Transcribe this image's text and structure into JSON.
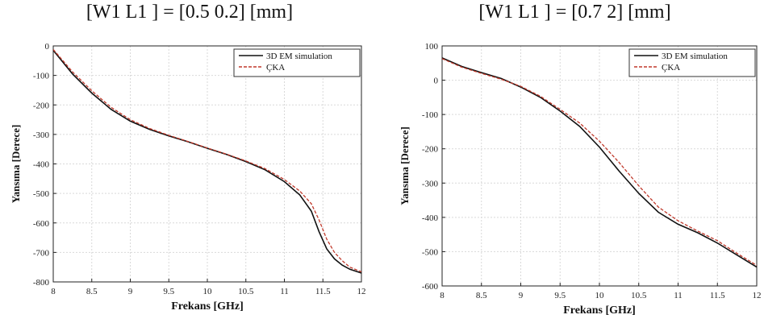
{
  "chart_data": [
    {
      "type": "line",
      "title": "[W1 L1 ] = [0.5 0.2] [mm]",
      "xlabel": "Frekans [GHz]",
      "ylabel": "Yansıma [Derece]",
      "xlim": [
        8,
        12
      ],
      "ylim": [
        -800,
        0
      ],
      "xticks": [
        8,
        8.5,
        9,
        9.5,
        10,
        10.5,
        11,
        11.5,
        12
      ],
      "xtick_labels": [
        "8",
        "8.5",
        "9",
        "9.5",
        "10",
        "10.5",
        "11",
        "11.5",
        "12"
      ],
      "yticks": [
        0,
        -100,
        -200,
        -300,
        -400,
        -500,
        -600,
        -700,
        -800
      ],
      "ytick_labels": [
        "0",
        "-100",
        "-200",
        "-300",
        "-400",
        "-500",
        "-600",
        "-700",
        "-800"
      ],
      "grid": true,
      "legend_position": "top-right",
      "series": [
        {
          "name": "3D EM simulation",
          "color": "#111111",
          "style": "solid",
          "x": [
            8,
            8.25,
            8.5,
            8.75,
            9,
            9.25,
            9.5,
            9.75,
            10,
            10.25,
            10.5,
            10.75,
            11,
            11.2,
            11.35,
            11.45,
            11.55,
            11.65,
            11.75,
            11.85,
            12
          ],
          "y": [
            -15,
            -95,
            -160,
            -215,
            -255,
            -283,
            -305,
            -325,
            -347,
            -368,
            -392,
            -420,
            -460,
            -505,
            -560,
            -630,
            -688,
            -722,
            -743,
            -757,
            -770
          ]
        },
        {
          "name": "ÇKA",
          "color": "#c0392b",
          "style": "dashed",
          "x": [
            8,
            8.25,
            8.5,
            8.75,
            9,
            9.25,
            9.5,
            9.75,
            10,
            10.25,
            10.5,
            10.75,
            11,
            11.2,
            11.35,
            11.45,
            11.55,
            11.65,
            11.75,
            11.85,
            12
          ],
          "y": [
            -12,
            -88,
            -152,
            -208,
            -250,
            -280,
            -303,
            -324,
            -346,
            -367,
            -390,
            -416,
            -453,
            -492,
            -535,
            -590,
            -655,
            -700,
            -728,
            -750,
            -766
          ]
        }
      ]
    },
    {
      "type": "line",
      "title": "[W1 L1 ] = [0.7 2] [mm]",
      "xlabel": "Frekans [GHz]",
      "ylabel": "Yansıma [Derece]",
      "xlim": [
        8,
        12
      ],
      "ylim": [
        -600,
        100
      ],
      "xticks": [
        8,
        8.5,
        9,
        9.5,
        10,
        10.5,
        11,
        11.5,
        12
      ],
      "xtick_labels": [
        "8",
        "8.5",
        "9",
        "9.5",
        "10",
        "10.5",
        "11",
        "11.5",
        "12"
      ],
      "yticks": [
        100,
        0,
        -100,
        -200,
        -300,
        -400,
        -500,
        -600
      ],
      "ytick_labels": [
        "100",
        "0",
        "-100",
        "-200",
        "-300",
        "-400",
        "-500",
        "-600"
      ],
      "grid": true,
      "legend_position": "top-right",
      "series": [
        {
          "name": "3D EM simulation",
          "color": "#111111",
          "style": "solid",
          "x": [
            8,
            8.25,
            8.5,
            8.75,
            9,
            9.25,
            9.5,
            9.75,
            10,
            10.25,
            10.5,
            10.75,
            11,
            11.25,
            11.5,
            11.75,
            12
          ],
          "y": [
            65,
            40,
            22,
            5,
            -20,
            -50,
            -90,
            -135,
            -195,
            -265,
            -330,
            -385,
            -420,
            -445,
            -475,
            -510,
            -545
          ]
        },
        {
          "name": "ÇKA",
          "color": "#c0392b",
          "style": "dashed",
          "x": [
            8,
            8.25,
            8.5,
            8.75,
            9,
            9.25,
            9.5,
            9.75,
            10,
            10.25,
            10.5,
            10.75,
            11,
            11.25,
            11.5,
            11.75,
            12
          ],
          "y": [
            63,
            38,
            20,
            3,
            -18,
            -47,
            -85,
            -125,
            -178,
            -240,
            -308,
            -370,
            -410,
            -440,
            -468,
            -505,
            -540
          ]
        }
      ]
    }
  ]
}
